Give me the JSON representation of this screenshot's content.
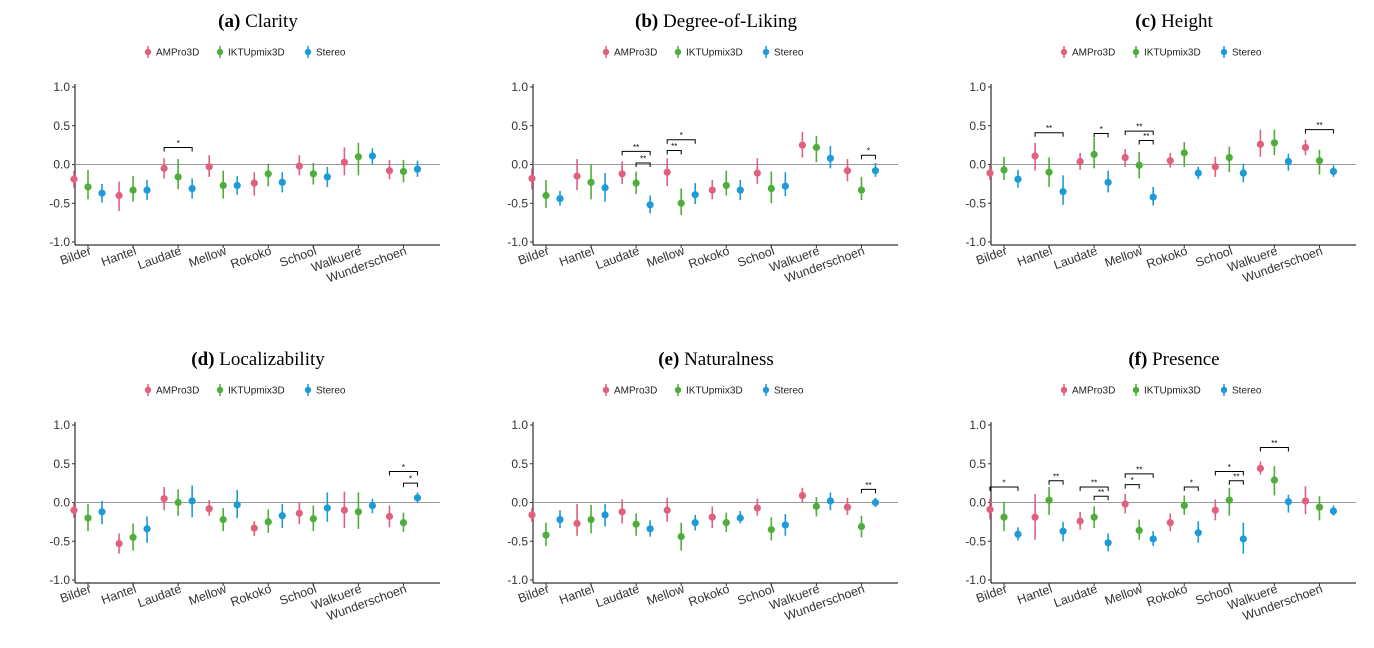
{
  "chart_data": {
    "type": "scatter",
    "categories": [
      "Bilder",
      "Hantel",
      "Laudate",
      "Mellow",
      "Rokoko",
      "School",
      "Walkuere",
      "Wunderschoen"
    ],
    "legend": [
      "AMPro3D",
      "IKTUpmix3D",
      "Stereo"
    ],
    "ylim": [
      -1.0,
      1.0
    ],
    "yticks": [
      "1.0",
      "0.5",
      "0.0",
      "-0.5",
      "-1.0"
    ],
    "colors": {
      "AMPro3D": "#e0607e",
      "IKTUpmix3D": "#4fad3c",
      "Stereo": "#1f9ad8"
    },
    "panels": [
      {
        "label": "(a)",
        "name": "Clarity",
        "series": [
          {
            "name": "AMPro3D",
            "values": [
              -0.19,
              -0.4,
              -0.05,
              -0.03,
              -0.24,
              -0.02,
              0.03,
              -0.08
            ],
            "lo": [
              -0.3,
              -0.6,
              -0.18,
              -0.16,
              -0.4,
              -0.14,
              -0.14,
              -0.19
            ],
            "hi": [
              -0.08,
              -0.22,
              0.08,
              0.12,
              -0.1,
              0.12,
              0.22,
              0.06
            ]
          },
          {
            "name": "IKTUpmix3D",
            "values": [
              -0.29,
              -0.33,
              -0.16,
              -0.27,
              -0.12,
              -0.12,
              0.1,
              -0.09
            ],
            "lo": [
              -0.45,
              -0.48,
              -0.32,
              -0.44,
              -0.28,
              -0.26,
              -0.14,
              -0.23
            ],
            "hi": [
              -0.07,
              -0.15,
              0.07,
              -0.08,
              0.01,
              0.02,
              0.28,
              0.06
            ]
          },
          {
            "name": "Stereo",
            "values": [
              -0.37,
              -0.33,
              -0.31,
              -0.27,
              -0.23,
              -0.16,
              0.11,
              -0.06
            ],
            "lo": [
              -0.49,
              -0.46,
              -0.44,
              -0.39,
              -0.36,
              -0.29,
              0.0,
              -0.16
            ],
            "hi": [
              -0.25,
              -0.2,
              -0.18,
              -0.15,
              -0.1,
              -0.03,
              0.21,
              0.05
            ]
          }
        ],
        "brackets": [
          {
            "cat": 2,
            "from": 0,
            "to": 2,
            "y": 0.22,
            "label": "*"
          }
        ]
      },
      {
        "label": "(b)",
        "name": "Degree-of-Liking",
        "series": [
          {
            "name": "AMPro3D",
            "values": [
              -0.18,
              -0.15,
              -0.12,
              -0.1,
              -0.33,
              -0.11,
              0.25,
              -0.08
            ],
            "lo": [
              -0.32,
              -0.33,
              -0.25,
              -0.28,
              -0.45,
              -0.25,
              0.09,
              -0.22
            ],
            "hi": [
              -0.05,
              0.07,
              0.04,
              0.08,
              -0.2,
              0.08,
              0.42,
              0.07
            ]
          },
          {
            "name": "IKTUpmix3D",
            "values": [
              -0.4,
              -0.23,
              -0.24,
              -0.5,
              -0.27,
              -0.31,
              0.22,
              -0.33
            ],
            "lo": [
              -0.56,
              -0.45,
              -0.38,
              -0.65,
              -0.4,
              -0.5,
              0.03,
              -0.46
            ],
            "hi": [
              -0.2,
              0.0,
              -0.09,
              -0.31,
              -0.08,
              -0.09,
              0.37,
              -0.16
            ]
          },
          {
            "name": "Stereo",
            "values": [
              -0.44,
              -0.3,
              -0.52,
              -0.39,
              -0.33,
              -0.28,
              0.08,
              -0.08
            ],
            "lo": [
              -0.53,
              -0.48,
              -0.63,
              -0.51,
              -0.46,
              -0.41,
              -0.05,
              -0.16
            ],
            "hi": [
              -0.34,
              -0.11,
              -0.4,
              -0.24,
              -0.2,
              -0.1,
              0.24,
              0.02
            ]
          }
        ],
        "brackets": [
          {
            "cat": 2,
            "from": 0,
            "to": 2,
            "y": 0.17,
            "label": "**"
          },
          {
            "cat": 2,
            "from": 1,
            "to": 2,
            "y": 0.02,
            "label": "**"
          },
          {
            "cat": 3,
            "from": 0,
            "to": 2,
            "y": 0.32,
            "label": "*"
          },
          {
            "cat": 3,
            "from": 0,
            "to": 1,
            "y": 0.18,
            "label": "**"
          },
          {
            "cat": 7,
            "from": 1,
            "to": 2,
            "y": 0.12,
            "label": "*"
          }
        ]
      },
      {
        "label": "(c)",
        "name": "Height",
        "series": [
          {
            "name": "AMPro3D",
            "values": [
              -0.11,
              0.11,
              0.04,
              0.09,
              0.05,
              -0.03,
              0.26,
              0.22
            ],
            "lo": [
              -0.2,
              -0.08,
              -0.07,
              -0.03,
              -0.04,
              -0.16,
              0.1,
              0.12
            ],
            "hi": [
              -0.01,
              0.28,
              0.15,
              0.2,
              0.15,
              0.1,
              0.45,
              0.32
            ]
          },
          {
            "name": "IKTUpmix3D",
            "values": [
              -0.07,
              -0.1,
              0.13,
              -0.01,
              0.15,
              0.09,
              0.28,
              0.05
            ],
            "lo": [
              -0.2,
              -0.29,
              -0.05,
              -0.18,
              -0.03,
              -0.1,
              0.12,
              -0.13
            ],
            "hi": [
              0.1,
              0.09,
              0.34,
              0.16,
              0.29,
              0.23,
              0.45,
              0.19
            ]
          },
          {
            "name": "Stereo",
            "values": [
              -0.19,
              -0.35,
              -0.23,
              -0.42,
              -0.11,
              -0.11,
              0.04,
              -0.09
            ],
            "lo": [
              -0.3,
              -0.52,
              -0.36,
              -0.53,
              -0.19,
              -0.23,
              -0.08,
              -0.16
            ],
            "hi": [
              -0.07,
              -0.14,
              -0.08,
              -0.29,
              -0.03,
              0.01,
              0.14,
              -0.01
            ]
          }
        ],
        "brackets": [
          {
            "cat": 1,
            "from": 0,
            "to": 2,
            "y": 0.41,
            "label": "**"
          },
          {
            "cat": 2,
            "from": 1,
            "to": 2,
            "y": 0.4,
            "label": "*"
          },
          {
            "cat": 3,
            "from": 0,
            "to": 2,
            "y": 0.43,
            "label": "**"
          },
          {
            "cat": 3,
            "from": 1,
            "to": 2,
            "y": 0.31,
            "label": "**"
          },
          {
            "cat": 7,
            "from": 0,
            "to": 2,
            "y": 0.45,
            "label": "**"
          }
        ]
      },
      {
        "label": "(d)",
        "name": "Localizability",
        "series": [
          {
            "name": "AMPro3D",
            "values": [
              -0.1,
              -0.53,
              0.05,
              -0.08,
              -0.33,
              -0.14,
              -0.1,
              -0.18
            ],
            "lo": [
              -0.2,
              -0.66,
              -0.1,
              -0.17,
              -0.43,
              -0.28,
              -0.33,
              -0.32
            ],
            "hi": [
              0.0,
              -0.4,
              0.2,
              0.03,
              -0.24,
              0.0,
              0.14,
              -0.04
            ]
          },
          {
            "name": "IKTUpmix3D",
            "values": [
              -0.2,
              -0.45,
              0.0,
              -0.22,
              -0.25,
              -0.21,
              -0.12,
              -0.26
            ],
            "lo": [
              -0.37,
              -0.62,
              -0.17,
              -0.37,
              -0.39,
              -0.37,
              -0.34,
              -0.38
            ],
            "hi": [
              -0.02,
              -0.27,
              0.17,
              -0.07,
              -0.09,
              -0.04,
              0.13,
              -0.13
            ]
          },
          {
            "name": "Stereo",
            "values": [
              -0.12,
              -0.34,
              0.02,
              -0.03,
              -0.17,
              -0.07,
              -0.04,
              0.06
            ],
            "lo": [
              -0.28,
              -0.52,
              -0.19,
              -0.2,
              -0.33,
              -0.25,
              -0.14,
              0.0
            ],
            "hi": [
              0.02,
              -0.18,
              0.22,
              0.16,
              -0.02,
              0.13,
              0.05,
              0.13
            ]
          }
        ],
        "brackets": [
          {
            "cat": 7,
            "from": 0,
            "to": 2,
            "y": 0.4,
            "label": "*"
          },
          {
            "cat": 7,
            "from": 1,
            "to": 2,
            "y": 0.25,
            "label": "*"
          }
        ]
      },
      {
        "label": "(e)",
        "name": "Naturalness",
        "series": [
          {
            "name": "AMPro3D",
            "values": [
              -0.16,
              -0.27,
              -0.12,
              -0.1,
              -0.19,
              -0.07,
              0.09,
              -0.06
            ],
            "lo": [
              -0.25,
              -0.43,
              -0.27,
              -0.25,
              -0.33,
              -0.17,
              0.0,
              -0.16
            ],
            "hi": [
              -0.07,
              -0.02,
              0.04,
              0.06,
              -0.05,
              0.05,
              0.19,
              0.06
            ]
          },
          {
            "name": "IKTUpmix3D",
            "values": [
              -0.42,
              -0.22,
              -0.28,
              -0.44,
              -0.26,
              -0.35,
              -0.05,
              -0.31
            ],
            "lo": [
              -0.56,
              -0.4,
              -0.43,
              -0.62,
              -0.38,
              -0.49,
              -0.18,
              -0.45
            ],
            "hi": [
              -0.26,
              -0.03,
              -0.14,
              -0.26,
              -0.13,
              -0.19,
              0.07,
              -0.17
            ]
          },
          {
            "name": "Stereo",
            "values": [
              -0.22,
              -0.16,
              -0.34,
              -0.26,
              -0.2,
              -0.29,
              0.02,
              0.0
            ],
            "lo": [
              -0.33,
              -0.31,
              -0.44,
              -0.36,
              -0.27,
              -0.43,
              -0.1,
              -0.06
            ],
            "hi": [
              -0.1,
              -0.02,
              -0.23,
              -0.16,
              -0.11,
              -0.15,
              0.13,
              0.06
            ]
          }
        ],
        "brackets": [
          {
            "cat": 7,
            "from": 1,
            "to": 2,
            "y": 0.17,
            "label": "**"
          }
        ]
      },
      {
        "label": "(f)",
        "name": "Presence",
        "series": [
          {
            "name": "AMPro3D",
            "values": [
              -0.09,
              -0.19,
              -0.24,
              -0.02,
              -0.26,
              -0.1,
              0.44,
              0.02
            ],
            "lo": [
              -0.22,
              -0.48,
              -0.35,
              -0.14,
              -0.37,
              -0.23,
              0.36,
              -0.15
            ],
            "hi": [
              0.05,
              0.11,
              -0.12,
              0.11,
              -0.14,
              0.04,
              0.53,
              0.21
            ]
          },
          {
            "name": "IKTUpmix3D",
            "values": [
              -0.19,
              0.03,
              -0.19,
              -0.36,
              -0.04,
              0.03,
              0.29,
              -0.06
            ],
            "lo": [
              -0.37,
              -0.16,
              -0.33,
              -0.48,
              -0.16,
              -0.17,
              0.09,
              -0.23
            ],
            "hi": [
              0.01,
              0.2,
              -0.05,
              -0.22,
              0.09,
              0.19,
              0.47,
              0.08
            ]
          },
          {
            "name": "Stereo",
            "values": [
              -0.41,
              -0.37,
              -0.52,
              -0.47,
              -0.39,
              -0.47,
              0.01,
              -0.11
            ],
            "lo": [
              -0.49,
              -0.5,
              -0.63,
              -0.56,
              -0.52,
              -0.66,
              -0.13,
              -0.17
            ],
            "hi": [
              -0.32,
              -0.25,
              -0.4,
              -0.37,
              -0.24,
              -0.26,
              0.1,
              -0.04
            ]
          }
        ],
        "brackets": [
          {
            "cat": 0,
            "from": 0,
            "to": 2,
            "y": 0.2,
            "label": "*"
          },
          {
            "cat": 1,
            "from": 1,
            "to": 2,
            "y": 0.28,
            "label": "**"
          },
          {
            "cat": 2,
            "from": 0,
            "to": 2,
            "y": 0.2,
            "label": "**"
          },
          {
            "cat": 2,
            "from": 1,
            "to": 2,
            "y": 0.08,
            "label": "**"
          },
          {
            "cat": 3,
            "from": 0,
            "to": 2,
            "y": 0.37,
            "label": "**"
          },
          {
            "cat": 3,
            "from": 0,
            "to": 1,
            "y": 0.23,
            "label": "*"
          },
          {
            "cat": 4,
            "from": 1,
            "to": 2,
            "y": 0.2,
            "label": "*"
          },
          {
            "cat": 5,
            "from": 0,
            "to": 2,
            "y": 0.4,
            "label": "*"
          },
          {
            "cat": 5,
            "from": 1,
            "to": 2,
            "y": 0.28,
            "label": "**"
          },
          {
            "cat": 6,
            "from": 0,
            "to": 2,
            "y": 0.71,
            "label": "**"
          }
        ]
      }
    ]
  }
}
